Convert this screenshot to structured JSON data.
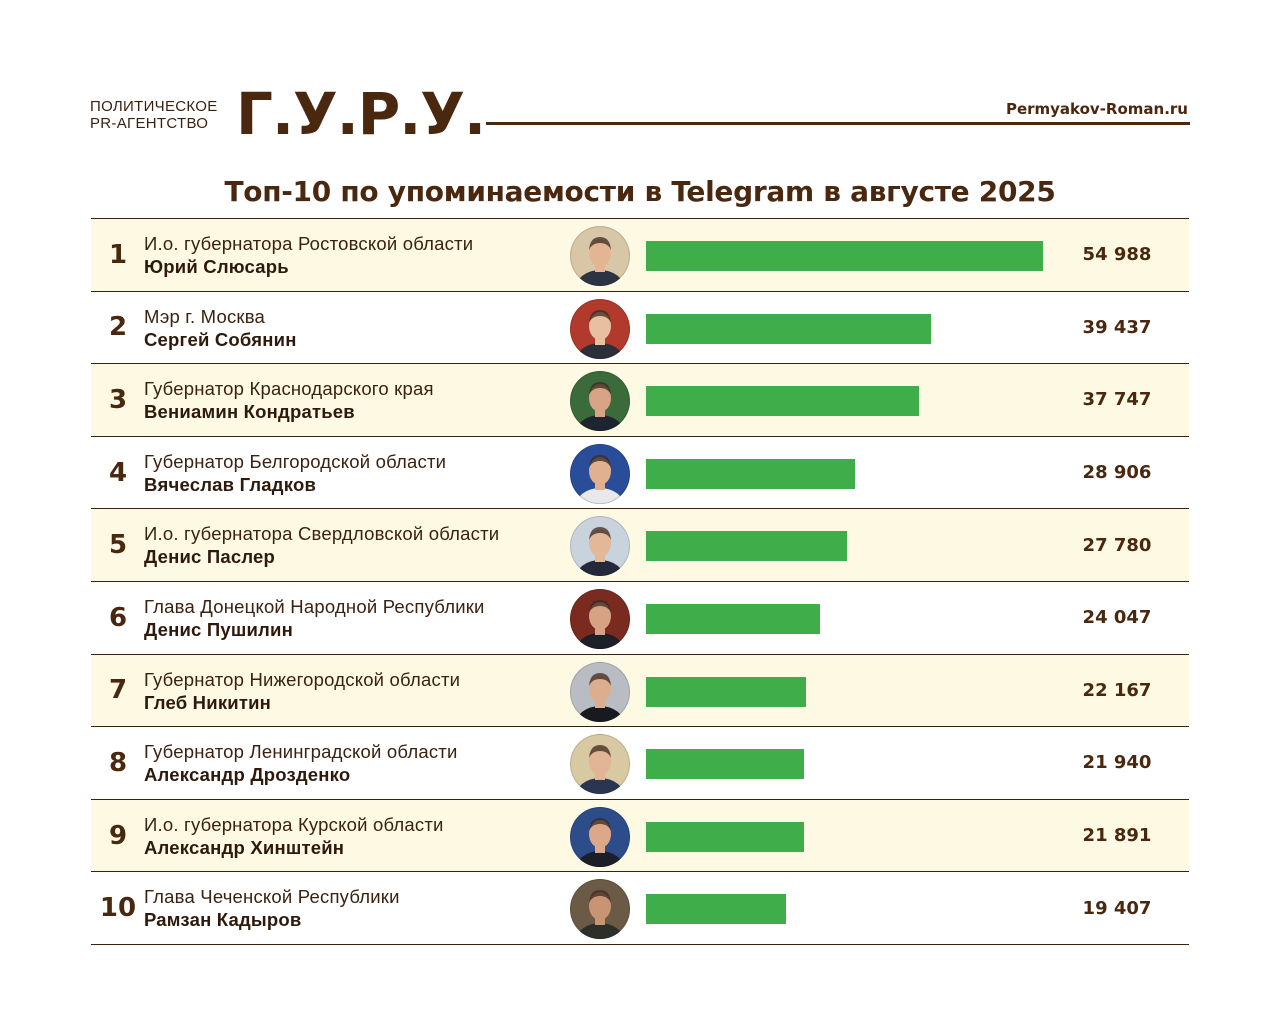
{
  "header": {
    "agency_line1": "ПОЛИТИЧЕСКОЕ",
    "agency_line2": "PR-АГЕНТСТВО",
    "logo": "Г.У.Р.У.",
    "site": "Permyakov-Roman.ru"
  },
  "colors": {
    "bar": "#3fad4a",
    "brand_brown": "#4a2810",
    "row_highlight": "#fdf9e3"
  },
  "chart_data": {
    "type": "bar",
    "orientation": "horizontal",
    "title": "Топ-10 по упоминаемости в Telegram в августе 2025",
    "xlim": [
      0,
      54988
    ],
    "rows": [
      {
        "rank": "1",
        "position": "И.о. губернатора Ростовской области",
        "name": "Юрий Слюсарь",
        "value": 54988,
        "label": "54 988",
        "avatar_bg": "#d7c7a6",
        "avatar_suit": "#2c3444",
        "avatar_skin": "#e3b592"
      },
      {
        "rank": "2",
        "position": "Мэр г. Москва",
        "name": "Сергей Собянин",
        "value": 39437,
        "label": "39 437",
        "avatar_bg": "#b23a2c",
        "avatar_suit": "#2b2f3a",
        "avatar_skin": "#e8bfa0"
      },
      {
        "rank": "3",
        "position": "Губернатор Краснодарского края",
        "name": "Вениамин Кондратьев",
        "value": 37747,
        "label": "37 747",
        "avatar_bg": "#3b6b3a",
        "avatar_suit": "#1f2530",
        "avatar_skin": "#d9a485"
      },
      {
        "rank": "4",
        "position": "Губернатор Белгородской области",
        "name": "Вячеслав Гладков",
        "value": 28906,
        "label": "28 906",
        "avatar_bg": "#2a4d99",
        "avatar_suit": "#e9e9ec",
        "avatar_skin": "#e0b090"
      },
      {
        "rank": "5",
        "position": "И.о. губернатора Свердловской области",
        "name": "Денис Паслер",
        "value": 27780,
        "label": "27 780",
        "avatar_bg": "#c9d3de",
        "avatar_suit": "#23293a",
        "avatar_skin": "#e2b898"
      },
      {
        "rank": "6",
        "position": "Глава Донецкой Народной Республики",
        "name": "Денис Пушилин",
        "value": 24047,
        "label": "24 047",
        "avatar_bg": "#7a2a1e",
        "avatar_suit": "#1e2028",
        "avatar_skin": "#d6a283"
      },
      {
        "rank": "7",
        "position": "Губернатор Нижегородской области",
        "name": "Глеб Никитин",
        "value": 22167,
        "label": "22 167",
        "avatar_bg": "#b9bcc2",
        "avatar_suit": "#181a20",
        "avatar_skin": "#dcae90"
      },
      {
        "rank": "8",
        "position": "Губернатор Ленинградской области",
        "name": "Александр Дрозденко",
        "value": 21940,
        "label": "21 940",
        "avatar_bg": "#d8c9a2",
        "avatar_suit": "#2a3552",
        "avatar_skin": "#e1b596"
      },
      {
        "rank": "9",
        "position": "И.о. губернатора Курской области",
        "name": "Александр Хинштейн",
        "value": 21891,
        "label": "21 891",
        "avatar_bg": "#2c4c8a",
        "avatar_suit": "#1c1f27",
        "avatar_skin": "#dba98a"
      },
      {
        "rank": "10",
        "position": "Глава Чеченской Республики",
        "name": "Рамзан Кадыров",
        "value": 19407,
        "label": "19 407",
        "avatar_bg": "#6b5a45",
        "avatar_suit": "#2d2f2a",
        "avatar_skin": "#c99474"
      }
    ]
  }
}
